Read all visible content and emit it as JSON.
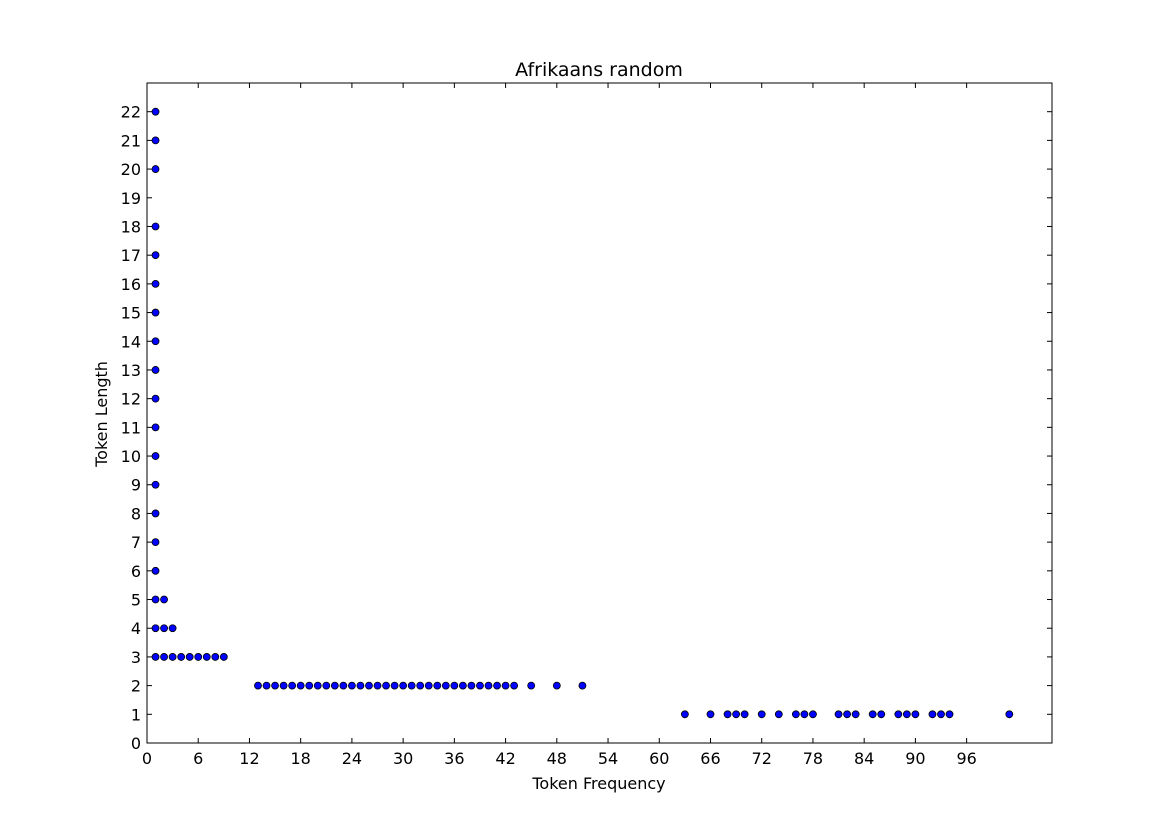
{
  "chart_data": {
    "type": "scatter",
    "title": "Afrikaans random",
    "xlabel": "Token Frequency",
    "ylabel": "Token Length",
    "xlim": [
      0,
      106
    ],
    "ylim": [
      0,
      23
    ],
    "grid": false,
    "xticks": [
      0,
      6,
      12,
      18,
      24,
      30,
      36,
      42,
      48,
      54,
      60,
      66,
      72,
      78,
      84,
      90,
      96
    ],
    "yticks": [
      0,
      1,
      2,
      3,
      4,
      5,
      6,
      7,
      8,
      9,
      10,
      11,
      12,
      13,
      14,
      15,
      16,
      17,
      18,
      19,
      20,
      21,
      22
    ],
    "marker_color": "#0000ff",
    "points": [
      [
        1,
        22
      ],
      [
        1,
        21
      ],
      [
        1,
        20
      ],
      [
        1,
        18
      ],
      [
        1,
        17
      ],
      [
        1,
        16
      ],
      [
        1,
        15
      ],
      [
        1,
        14
      ],
      [
        1,
        13
      ],
      [
        1,
        12
      ],
      [
        1,
        11
      ],
      [
        1,
        10
      ],
      [
        1,
        9
      ],
      [
        1,
        8
      ],
      [
        1,
        7
      ],
      [
        1,
        6
      ],
      [
        1,
        5
      ],
      [
        2,
        5
      ],
      [
        1,
        4
      ],
      [
        2,
        4
      ],
      [
        3,
        4
      ],
      [
        1,
        3
      ],
      [
        2,
        3
      ],
      [
        3,
        3
      ],
      [
        4,
        3
      ],
      [
        5,
        3
      ],
      [
        6,
        3
      ],
      [
        7,
        3
      ],
      [
        8,
        3
      ],
      [
        9,
        3
      ],
      [
        13,
        2
      ],
      [
        14,
        2
      ],
      [
        15,
        2
      ],
      [
        16,
        2
      ],
      [
        17,
        2
      ],
      [
        18,
        2
      ],
      [
        19,
        2
      ],
      [
        20,
        2
      ],
      [
        21,
        2
      ],
      [
        22,
        2
      ],
      [
        23,
        2
      ],
      [
        24,
        2
      ],
      [
        25,
        2
      ],
      [
        26,
        2
      ],
      [
        27,
        2
      ],
      [
        28,
        2
      ],
      [
        29,
        2
      ],
      [
        30,
        2
      ],
      [
        31,
        2
      ],
      [
        32,
        2
      ],
      [
        33,
        2
      ],
      [
        34,
        2
      ],
      [
        35,
        2
      ],
      [
        36,
        2
      ],
      [
        37,
        2
      ],
      [
        38,
        2
      ],
      [
        39,
        2
      ],
      [
        40,
        2
      ],
      [
        41,
        2
      ],
      [
        42,
        2
      ],
      [
        43,
        2
      ],
      [
        45,
        2
      ],
      [
        48,
        2
      ],
      [
        51,
        2
      ],
      [
        63,
        1
      ],
      [
        66,
        1
      ],
      [
        68,
        1
      ],
      [
        69,
        1
      ],
      [
        70,
        1
      ],
      [
        72,
        1
      ],
      [
        74,
        1
      ],
      [
        76,
        1
      ],
      [
        77,
        1
      ],
      [
        78,
        1
      ],
      [
        81,
        1
      ],
      [
        82,
        1
      ],
      [
        83,
        1
      ],
      [
        85,
        1
      ],
      [
        86,
        1
      ],
      [
        88,
        1
      ],
      [
        89,
        1
      ],
      [
        90,
        1
      ],
      [
        92,
        1
      ],
      [
        93,
        1
      ],
      [
        94,
        1
      ],
      [
        101,
        1
      ]
    ]
  }
}
